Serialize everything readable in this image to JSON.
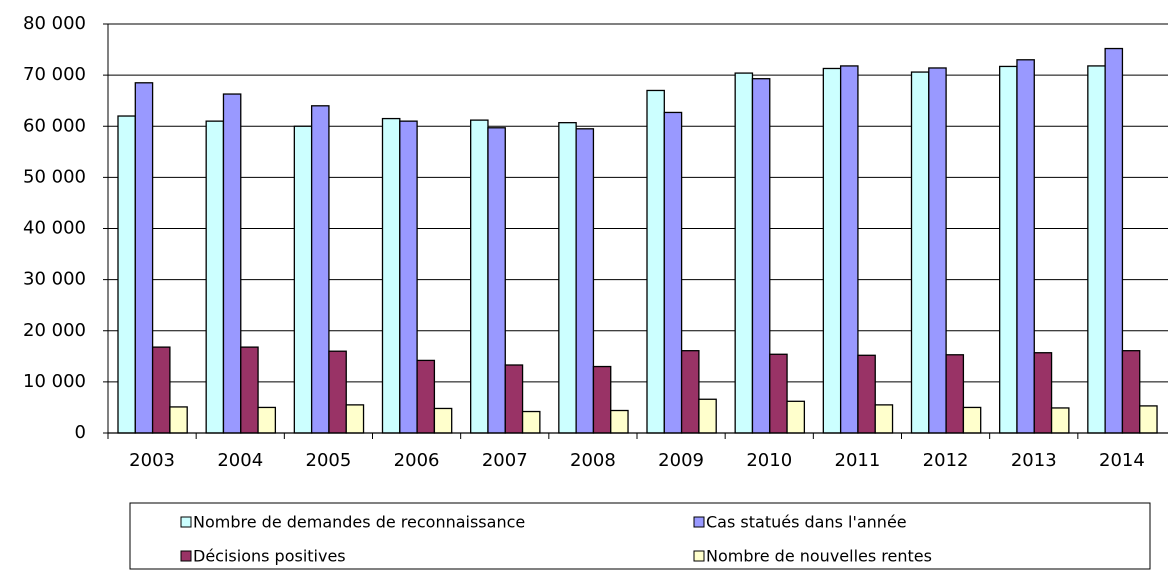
{
  "chart_data": {
    "type": "bar",
    "categories": [
      "2003",
      "2004",
      "2005",
      "2006",
      "2007",
      "2008",
      "2009",
      "2010",
      "2011",
      "2012",
      "2013",
      "2014"
    ],
    "series": [
      {
        "name": "Nombre de demandes de reconnaissance",
        "color": "#ccffff",
        "values": [
          62000,
          61000,
          60000,
          61500,
          61200,
          60700,
          67000,
          70400,
          71300,
          70600,
          71700,
          71800
        ]
      },
      {
        "name": "Cas statués dans l'année",
        "color": "#9999ff",
        "values": [
          68500,
          66300,
          64000,
          61000,
          59700,
          59500,
          62700,
          69300,
          71800,
          71400,
          73000,
          75200
        ]
      },
      {
        "name": "Décisions positives",
        "color": "#993366",
        "values": [
          16800,
          16800,
          16000,
          14200,
          13300,
          13000,
          16100,
          15400,
          15200,
          15300,
          15700,
          16100
        ]
      },
      {
        "name": "Nombre de nouvelles rentes",
        "color": "#ffffcc",
        "values": [
          5100,
          5000,
          5500,
          4800,
          4200,
          4400,
          6600,
          6200,
          5500,
          5000,
          4900,
          5300
        ]
      }
    ],
    "ylim": [
      0,
      80000
    ],
    "yticks": [
      0,
      {
        "value": 10000,
        "label": "10 000"
      },
      {
        "value": 20000,
        "label": "20 000"
      },
      {
        "value": 30000,
        "label": "30 000"
      },
      {
        "value": 40000,
        "label": "40 000"
      },
      {
        "value": 50000,
        "label": "50 000"
      },
      {
        "value": 60000,
        "label": "60 000"
      },
      {
        "value": 70000,
        "label": "70 000"
      },
      {
        "value": 80000,
        "label": "80 000"
      }
    ],
    "grid": true
  }
}
